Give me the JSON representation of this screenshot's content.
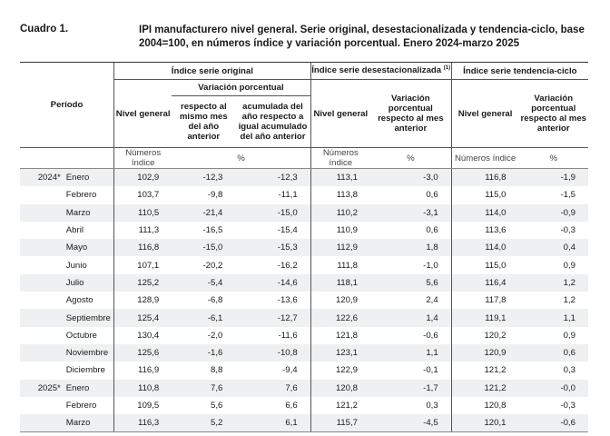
{
  "header": {
    "label": "Cuadro 1.",
    "title": "IPI manufacturero nivel general. Serie original, desestacionalizada y tendencia-ciclo, base 2004=100, en números índice y variación porcentual. Enero 2024-marzo 2025"
  },
  "columns": {
    "periodo": "Período",
    "original": "Índice serie original",
    "desest": "Índice serie desestacionalizada",
    "desest_note": "(1)",
    "tendencia": "Índice serie tendencia-ciclo",
    "variacion": "Variación porcentual",
    "nivel": "Nivel general",
    "resp_mes": "respecto al mismo mes del año anterior",
    "acum": "acumulada del año respecto a igual acumulado del año anterior",
    "var_mes": "Variación porcentual respecto al mes anterior",
    "var_mes_short": "Variación porcentual respecto al mes anterior"
  },
  "units": {
    "numeros": "Números índice",
    "pct": "%"
  },
  "rows": [
    {
      "year": "2024*",
      "month": "Enero",
      "orig": "102,9",
      "v_mes": "-12,3",
      "v_acum": "-12,3",
      "des": "113,1",
      "des_v": "-3,0",
      "ten": "116,8",
      "ten_v": "-1,9"
    },
    {
      "year": "",
      "month": "Febrero",
      "orig": "103,7",
      "v_mes": "-9,8",
      "v_acum": "-11,1",
      "des": "113,8",
      "des_v": "0,6",
      "ten": "115,0",
      "ten_v": "-1,5"
    },
    {
      "year": "",
      "month": "Marzo",
      "orig": "110,5",
      "v_mes": "-21,4",
      "v_acum": "-15,0",
      "des": "110,2",
      "des_v": "-3,1",
      "ten": "114,0",
      "ten_v": "-0,9"
    },
    {
      "year": "",
      "month": "Abril",
      "orig": "111,3",
      "v_mes": "-16,5",
      "v_acum": "-15,4",
      "des": "110,9",
      "des_v": "0,6",
      "ten": "113,6",
      "ten_v": "-0,3"
    },
    {
      "year": "",
      "month": "Mayo",
      "orig": "116,8",
      "v_mes": "-15,0",
      "v_acum": "-15,3",
      "des": "112,9",
      "des_v": "1,8",
      "ten": "114,0",
      "ten_v": "0,4"
    },
    {
      "year": "",
      "month": "Junio",
      "orig": "107,1",
      "v_mes": "-20,2",
      "v_acum": "-16,2",
      "des": "111,8",
      "des_v": "-1,0",
      "ten": "115,0",
      "ten_v": "0,9"
    },
    {
      "year": "",
      "month": "Julio",
      "orig": "125,2",
      "v_mes": "-5,4",
      "v_acum": "-14,6",
      "des": "118,1",
      "des_v": "5,6",
      "ten": "116,4",
      "ten_v": "1,2"
    },
    {
      "year": "",
      "month": "Agosto",
      "orig": "128,9",
      "v_mes": "-6,8",
      "v_acum": "-13,6",
      "des": "120,9",
      "des_v": "2,4",
      "ten": "117,8",
      "ten_v": "1,2"
    },
    {
      "year": "",
      "month": "Septiembre",
      "orig": "125,4",
      "v_mes": "-6,1",
      "v_acum": "-12,7",
      "des": "122,6",
      "des_v": "1,4",
      "ten": "119,1",
      "ten_v": "1,1"
    },
    {
      "year": "",
      "month": "Octubre",
      "orig": "130,4",
      "v_mes": "-2,0",
      "v_acum": "-11,6",
      "des": "121,8",
      "des_v": "-0,6",
      "ten": "120,2",
      "ten_v": "0,9"
    },
    {
      "year": "",
      "month": "Noviembre",
      "orig": "125,6",
      "v_mes": "-1,6",
      "v_acum": "-10,8",
      "des": "123,1",
      "des_v": "1,1",
      "ten": "120,9",
      "ten_v": "0,6"
    },
    {
      "year": "",
      "month": "Diciembre",
      "orig": "116,9",
      "v_mes": "8,8",
      "v_acum": "-9,4",
      "des": "122,9",
      "des_v": "-0,1",
      "ten": "121,2",
      "ten_v": "0,3"
    },
    {
      "year": "2025*",
      "month": "Enero",
      "orig": "110,8",
      "v_mes": "7,6",
      "v_acum": "7,6",
      "des": "120,8",
      "des_v": "-1,7",
      "ten": "121,2",
      "ten_v": "-0,0"
    },
    {
      "year": "",
      "month": "Febrero",
      "orig": "109,5",
      "v_mes": "5,6",
      "v_acum": "6,6",
      "des": "121,2",
      "des_v": "0,3",
      "ten": "120,8",
      "ten_v": "-0,3"
    },
    {
      "year": "",
      "month": "Marzo",
      "orig": "116,3",
      "v_mes": "5,2",
      "v_acum": "6,1",
      "des": "115,7",
      "des_v": "-4,5",
      "ten": "120,1",
      "ten_v": "-0,6"
    }
  ]
}
